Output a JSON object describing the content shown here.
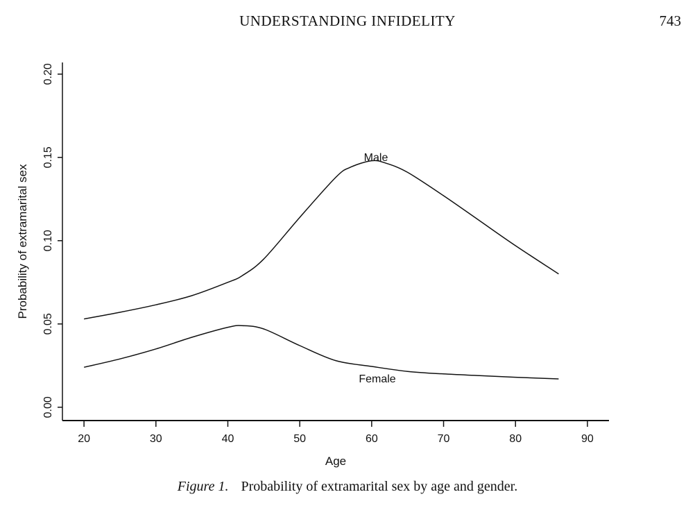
{
  "header": {
    "running_title": "UNDERSTANDING INFIDELITY",
    "page_number": "743"
  },
  "caption": {
    "label": "Figure 1.",
    "text": "Probability of extramarital sex by age and gender."
  },
  "colors": {
    "line": "#111111",
    "background": "#ffffff"
  },
  "chart_data": {
    "type": "line",
    "xlabel": "Age",
    "ylabel": "Probability of extramarital sex",
    "xlim": [
      17,
      93
    ],
    "ylim": [
      -0.008,
      0.207
    ],
    "xticks": [
      20,
      30,
      40,
      50,
      60,
      70,
      80,
      90
    ],
    "xtick_labels": [
      "20",
      "30",
      "40",
      "50",
      "60",
      "70",
      "80",
      "90"
    ],
    "yticks": [
      0.0,
      0.05,
      0.1,
      0.15,
      0.2
    ],
    "ytick_labels": [
      "0.00",
      "0.05",
      "0.10",
      "0.15",
      "0.20"
    ],
    "grid": false,
    "legend": "none (lines labeled directly)",
    "series": [
      {
        "name": "Male",
        "x": [
          20,
          25,
          30,
          35,
          40,
          42,
          45,
          50,
          55,
          57,
          60,
          62,
          65,
          70,
          75,
          80,
          86
        ],
        "y": [
          0.053,
          0.057,
          0.0615,
          0.067,
          0.075,
          0.079,
          0.089,
          0.114,
          0.138,
          0.144,
          0.148,
          0.1465,
          0.141,
          0.127,
          0.112,
          0.097,
          0.08
        ]
      },
      {
        "name": "Female",
        "x": [
          20,
          25,
          30,
          35,
          40,
          42,
          45,
          50,
          55,
          60,
          65,
          70,
          75,
          80,
          86
        ],
        "y": [
          0.024,
          0.029,
          0.035,
          0.042,
          0.048,
          0.049,
          0.047,
          0.037,
          0.028,
          0.0245,
          0.0215,
          0.02,
          0.019,
          0.018,
          0.017
        ]
      }
    ]
  }
}
